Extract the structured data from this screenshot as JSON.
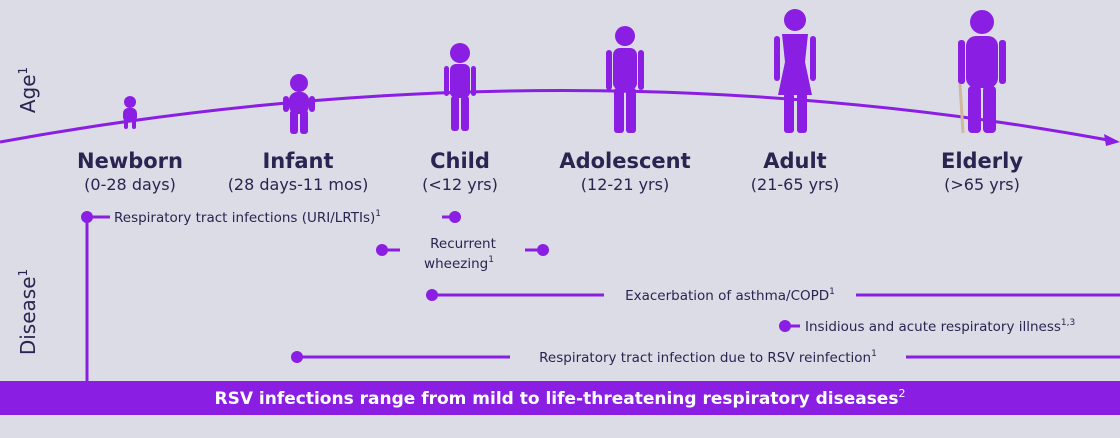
{
  "axes": {
    "age": {
      "text": "Age",
      "sup": "1"
    },
    "disease": {
      "text": "Disease",
      "sup": "1"
    }
  },
  "stages": [
    {
      "name": "Newborn",
      "range": "(0-28 days)"
    },
    {
      "name": "Infant",
      "range": "(28 days-11 mos)"
    },
    {
      "name": "Child",
      "range": "(<12 yrs)"
    },
    {
      "name": "Adolescent",
      "range": "(12-21 yrs)"
    },
    {
      "name": "Adult",
      "range": "(21-65 yrs)"
    },
    {
      "name": "Elderly",
      "range": "(>65 yrs)"
    }
  ],
  "diseases": [
    {
      "lines": [
        "Respiratory tract infections (URI/LRTIs)"
      ],
      "sup": "1"
    },
    {
      "lines": [
        "Recurrent",
        "wheezing"
      ],
      "sup": "1"
    },
    {
      "lines": [
        "Exacerbation of asthma/COPD"
      ],
      "sup": "1"
    },
    {
      "lines": [
        "Insidious and acute respiratory illness"
      ],
      "sup": "1,3"
    },
    {
      "lines": [
        "Respiratory tract infection due to RSV reinfection"
      ],
      "sup": "1"
    }
  ],
  "banner": {
    "text": "RSV infections range from mild to life-threatening respiratory diseases",
    "sup": "2"
  }
}
